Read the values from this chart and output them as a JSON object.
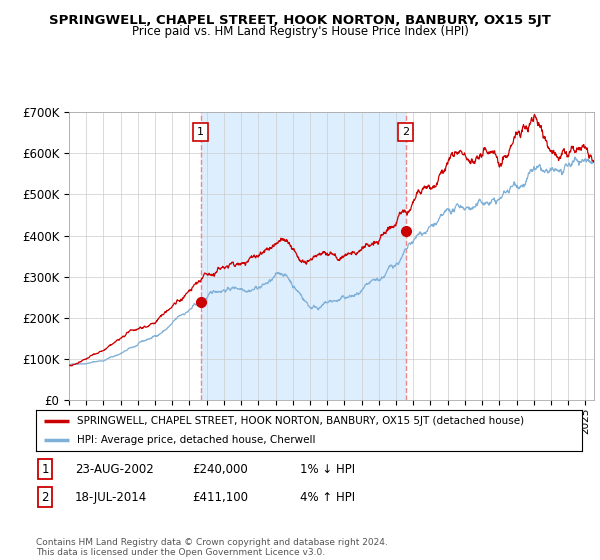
{
  "title": "SPRINGWELL, CHAPEL STREET, HOOK NORTON, BANBURY, OX15 5JT",
  "subtitle": "Price paid vs. HM Land Registry's House Price Index (HPI)",
  "ylim": [
    0,
    700000
  ],
  "yticks": [
    0,
    100000,
    200000,
    300000,
    400000,
    500000,
    600000,
    700000
  ],
  "ytick_labels": [
    "£0",
    "£100K",
    "£200K",
    "£300K",
    "£400K",
    "£500K",
    "£600K",
    "£700K"
  ],
  "line1_color": "#cc0000",
  "line2_color": "#7fb0d8",
  "shade_color": "#ddeeff",
  "vline_color": "#ee8888",
  "ann1_x": 2002.65,
  "ann1_y": 240000,
  "ann2_x": 2014.55,
  "ann2_y": 411100,
  "legend_line1": "SPRINGWELL, CHAPEL STREET, HOOK NORTON, BANBURY, OX15 5JT (detached house)",
  "legend_line2": "HPI: Average price, detached house, Cherwell",
  "footnote": "Contains HM Land Registry data © Crown copyright and database right 2024.\nThis data is licensed under the Open Government Licence v3.0.",
  "table_row1": [
    "1",
    "23-AUG-2002",
    "£240,000",
    "1% ↓ HPI"
  ],
  "table_row2": [
    "2",
    "18-JUL-2014",
    "£411,100",
    "4% ↑ HPI"
  ],
  "xmin": 1995.0,
  "xmax": 2025.5,
  "background_color": "#ffffff",
  "grid_color": "#cccccc"
}
